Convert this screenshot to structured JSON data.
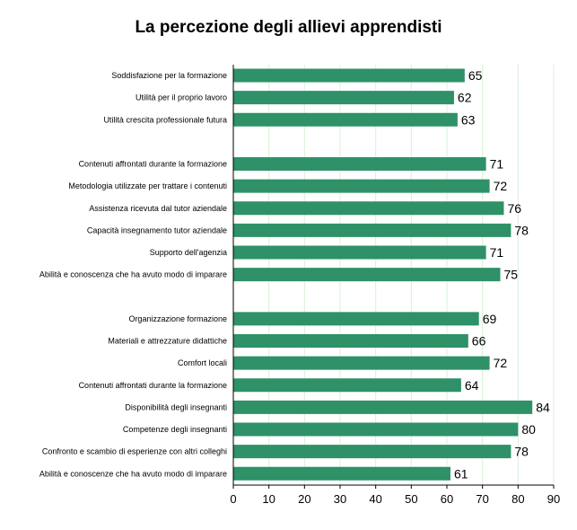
{
  "chart_data": {
    "type": "bar",
    "orientation": "horizontal",
    "title": "La percezione degli allievi apprendisti",
    "xlabel": "",
    "ylabel": "",
    "xlim": [
      0,
      90
    ],
    "ticks": [
      0,
      10,
      20,
      30,
      40,
      50,
      60,
      70,
      80,
      90
    ],
    "grid": true,
    "legend": "none",
    "bar_color": "#2e9168",
    "grid_color": "#d9f0d9",
    "groups": [
      {
        "items": [
          {
            "label": "Soddisfazione per la formazione",
            "value": 65
          },
          {
            "label": "Utilità per il proprio lavoro",
            "value": 62
          },
          {
            "label": "Utilità crescita professionale futura",
            "value": 63
          }
        ]
      },
      {
        "items": [
          {
            "label": "Contenuti affrontati durante la formazione",
            "value": 71
          },
          {
            "label": "Metodologia utilizzate per trattare i contenuti",
            "value": 72
          },
          {
            "label": "Assistenza ricevuta dal tutor aziendale",
            "value": 76
          },
          {
            "label": "Capacità insegnamento tutor aziendale",
            "value": 78
          },
          {
            "label": "Supporto dell'agenzia",
            "value": 71
          },
          {
            "label": "Abilità e conoscenza che ha avuto modo di imparare",
            "value": 75
          }
        ]
      },
      {
        "items": [
          {
            "label": "Organizzazione formazione",
            "value": 69
          },
          {
            "label": "Materiali e attrezzature didattiche",
            "value": 66
          },
          {
            "label": "Comfort locali",
            "value": 72
          },
          {
            "label": "Contenuti affrontati durante la formazione",
            "value": 64
          },
          {
            "label": "Disponibilità degli insegnanti",
            "value": 84
          },
          {
            "label": "Competenze degli insegnanti",
            "value": 80
          },
          {
            "label": "Confronto e scambio di esperienze con altri colleghi",
            "value": 78
          },
          {
            "label": "Abilità e conoscenze che ha avuto modo di imparare",
            "value": 61
          }
        ]
      }
    ]
  }
}
